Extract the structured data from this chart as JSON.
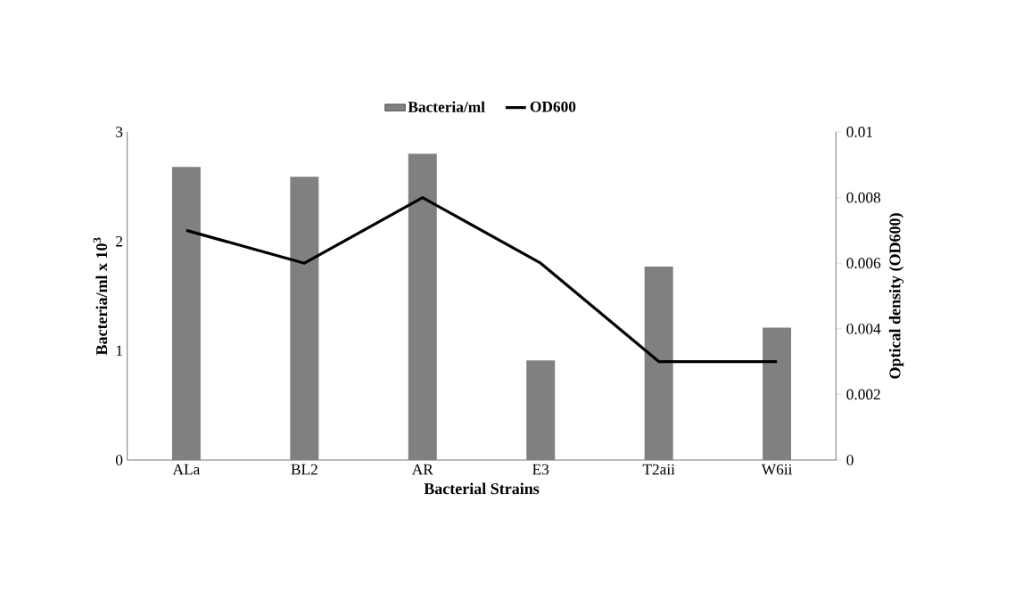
{
  "chart_data": {
    "type": "bar",
    "categories": [
      "ALa",
      "BL2",
      "AR",
      "E3",
      "T2aii",
      "W6ii"
    ],
    "series": [
      {
        "name": "Bacteria/ml",
        "color": "#808080",
        "values": [
          2.68,
          2.59,
          2.8,
          0.91,
          1.77,
          1.21
        ]
      },
      {
        "name": "OD600",
        "type": "line",
        "axis": "y2",
        "color": "#000000",
        "values": [
          0.007,
          0.006,
          0.008,
          0.006,
          0.003,
          0.003
        ]
      }
    ],
    "xlabel": "Bacterial Strains",
    "ylabel": "Bacteria/ml x 10$^{3}$",
    "y2label": "Optical density (OD600)",
    "ylim": [
      0,
      3
    ],
    "yticks": [
      0,
      1,
      2,
      3
    ],
    "y2lim": [
      0,
      0.01
    ],
    "y2ticks": [
      0,
      0.002,
      0.004,
      0.006,
      0.008,
      0.01
    ],
    "legend": "top"
  }
}
